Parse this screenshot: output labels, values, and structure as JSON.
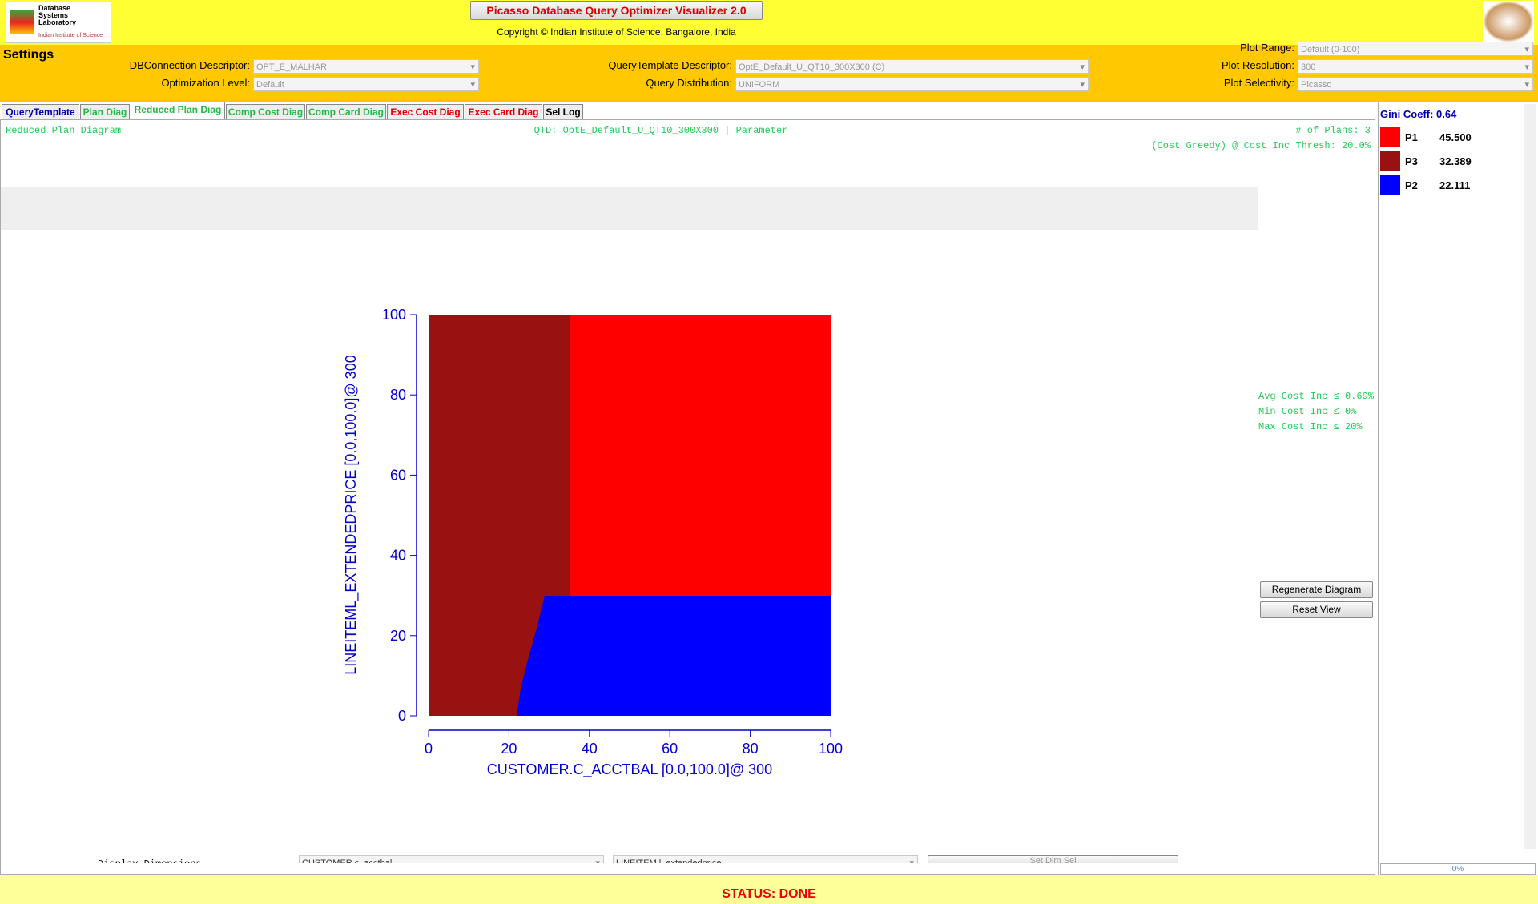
{
  "header": {
    "logo_text": [
      "Database",
      "Systems",
      "Laboratory",
      "Indian Institute of Science"
    ],
    "title": "Picasso Database Query Optimizer Visualizer 2.0",
    "copyright": "Copyright © Indian Institute of Science, Bangalore, India"
  },
  "settings": {
    "title": "Settings",
    "fields": [
      {
        "label": "DBConnection Descriptor:",
        "value": "OPT_E_MALHAR"
      },
      {
        "label": "Optimization Level:",
        "value": "Default"
      },
      {
        "label": "QueryTemplate Descriptor:",
        "value": "OptE_Default_U_QT10_300X300    (C)"
      },
      {
        "label": "Query Distribution:",
        "value": "UNIFORM"
      },
      {
        "label": "Plot Range:",
        "value": "Default (0-100)"
      },
      {
        "label": "Plot Resolution:",
        "value": "300"
      },
      {
        "label": "Plot Selectivity:",
        "value": "Picasso"
      }
    ]
  },
  "tabs": [
    "QueryTemplate",
    "Plan Diag",
    "Reduced Plan Diag",
    "Comp Cost Diag",
    "Comp Card Diag",
    "Exec Cost Diag",
    "Exec Card Diag",
    "Sel Log"
  ],
  "diagram": {
    "name": "Reduced Plan Diagram",
    "qtd": "QTD: OptE_Default_U_QT10_300X300 | Parameter",
    "plans": "# of Plans: 3",
    "thresh": "(Cost Greedy) @ Cost Inc Thresh: 20.0%",
    "x_axis": {
      "label": "CUSTOMER.C_ACCTBAL [0.0,100.0]@ 300",
      "lim": [
        0,
        100
      ],
      "ticks": [
        0,
        20,
        40,
        60,
        80,
        100
      ]
    },
    "y_axis": {
      "label": "LINEITEML_EXTENDEDPRICE [0.0,100.0]@ 300",
      "lim": [
        0,
        100
      ],
      "ticks": [
        0,
        20,
        40,
        60,
        80,
        100
      ]
    },
    "stats": [
      "Avg Cost Inc ≤ 0.69%",
      "Min Cost Inc ≤ 0%",
      "Max Cost Inc ≤ 20%"
    ],
    "buttons": [
      "Regenerate Diagram",
      "Reset View"
    ],
    "dims": {
      "label": "Display Dimensions",
      "x": "CUSTOMER.c_acctbal",
      "y": "LINEITEM.l_extendedprice",
      "button": "Set Dim Sel"
    }
  },
  "legend": {
    "gini": "Gini Coeff: 0.64",
    "plans": [
      {
        "name": "P1",
        "value": "45.500",
        "color": "#ff0000"
      },
      {
        "name": "P3",
        "value": "32.389",
        "color": "#991111"
      },
      {
        "name": "P2",
        "value": "22.111",
        "color": "#0000ff"
      }
    ],
    "progress": "0%"
  },
  "status": "STATUS: DONE"
}
